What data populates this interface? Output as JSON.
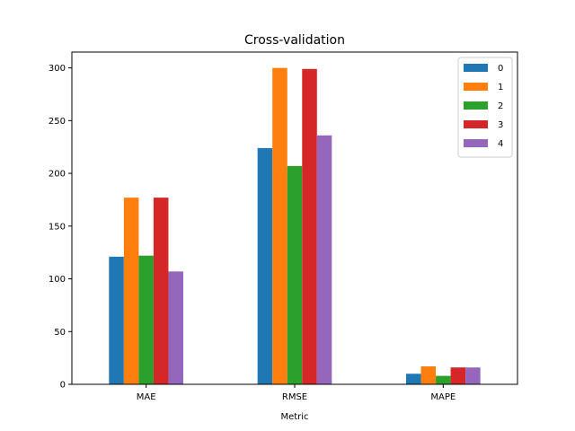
{
  "chart_data": {
    "type": "bar",
    "title": "Cross-validation",
    "xlabel": "Metric",
    "ylabel": "",
    "categories": [
      "MAE",
      "RMSE",
      "MAPE"
    ],
    "series": [
      {
        "name": "0",
        "values": [
          121,
          224,
          10
        ],
        "color": "#1f77b4"
      },
      {
        "name": "1",
        "values": [
          177,
          300,
          17
        ],
        "color": "#ff7f0e"
      },
      {
        "name": "2",
        "values": [
          122,
          207,
          8
        ],
        "color": "#2ca02c"
      },
      {
        "name": "3",
        "values": [
          177,
          299,
          16
        ],
        "color": "#d62728"
      },
      {
        "name": "4",
        "values": [
          107,
          236,
          16
        ],
        "color": "#9467bd"
      }
    ],
    "ylim": [
      0,
      315
    ],
    "yticks": [
      0,
      50,
      100,
      150,
      200,
      250,
      300
    ],
    "grid": false,
    "legend_position": "top-right"
  }
}
